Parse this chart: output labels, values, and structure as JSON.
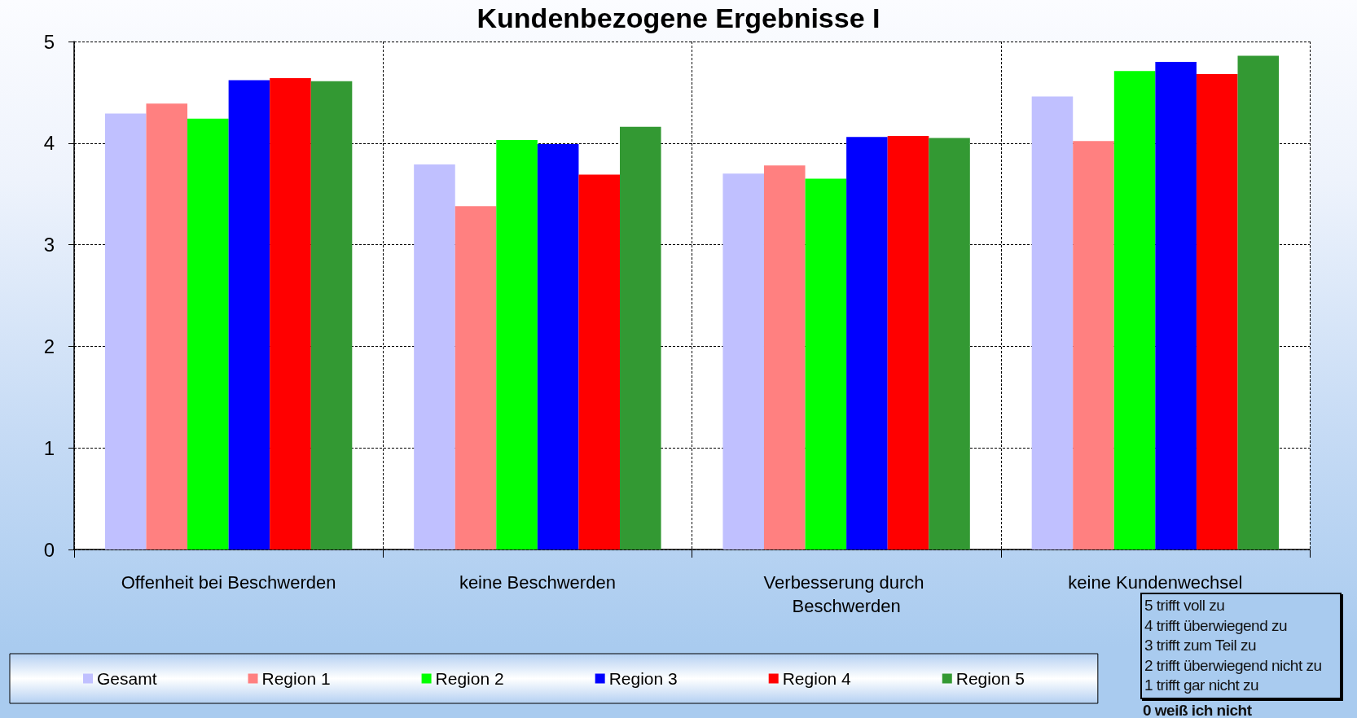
{
  "chart_data": {
    "type": "bar",
    "title": "Kundenbezogene Ergebnisse I",
    "categories": [
      "Offenheit bei Beschwerden",
      "keine Beschwerden",
      "Verbesserung durch Beschwerden",
      "keine Kundenwechsel"
    ],
    "series": [
      {
        "name": "Gesamt",
        "color": "#c0c0ff",
        "values": [
          4.29,
          3.79,
          3.7,
          4.46
        ]
      },
      {
        "name": "Region 1",
        "color": "#ff8080",
        "values": [
          4.39,
          3.38,
          3.78,
          4.02
        ]
      },
      {
        "name": "Region 2",
        "color": "#00ff00",
        "values": [
          4.24,
          4.03,
          3.65,
          4.71
        ]
      },
      {
        "name": "Region 3",
        "color": "#0000ff",
        "values": [
          4.62,
          3.99,
          4.06,
          4.8
        ]
      },
      {
        "name": "Region 4",
        "color": "#ff0000",
        "values": [
          4.64,
          3.69,
          4.07,
          4.68
        ]
      },
      {
        "name": "Region 5",
        "color": "#339933",
        "values": [
          4.61,
          4.16,
          4.05,
          4.86
        ]
      }
    ],
    "ylim": [
      0,
      5
    ],
    "yticks": [
      0,
      1,
      2,
      3,
      4,
      5
    ],
    "grid": true,
    "legend": "bottom",
    "annotations": [
      "5 trifft voll zu",
      "4 trifft überwiegend zu",
      "3 trifft zum Teil zu",
      "2 trifft überwiegend nicht zu",
      "1 trifft gar nicht zu",
      "0 weiß ich nicht"
    ]
  }
}
